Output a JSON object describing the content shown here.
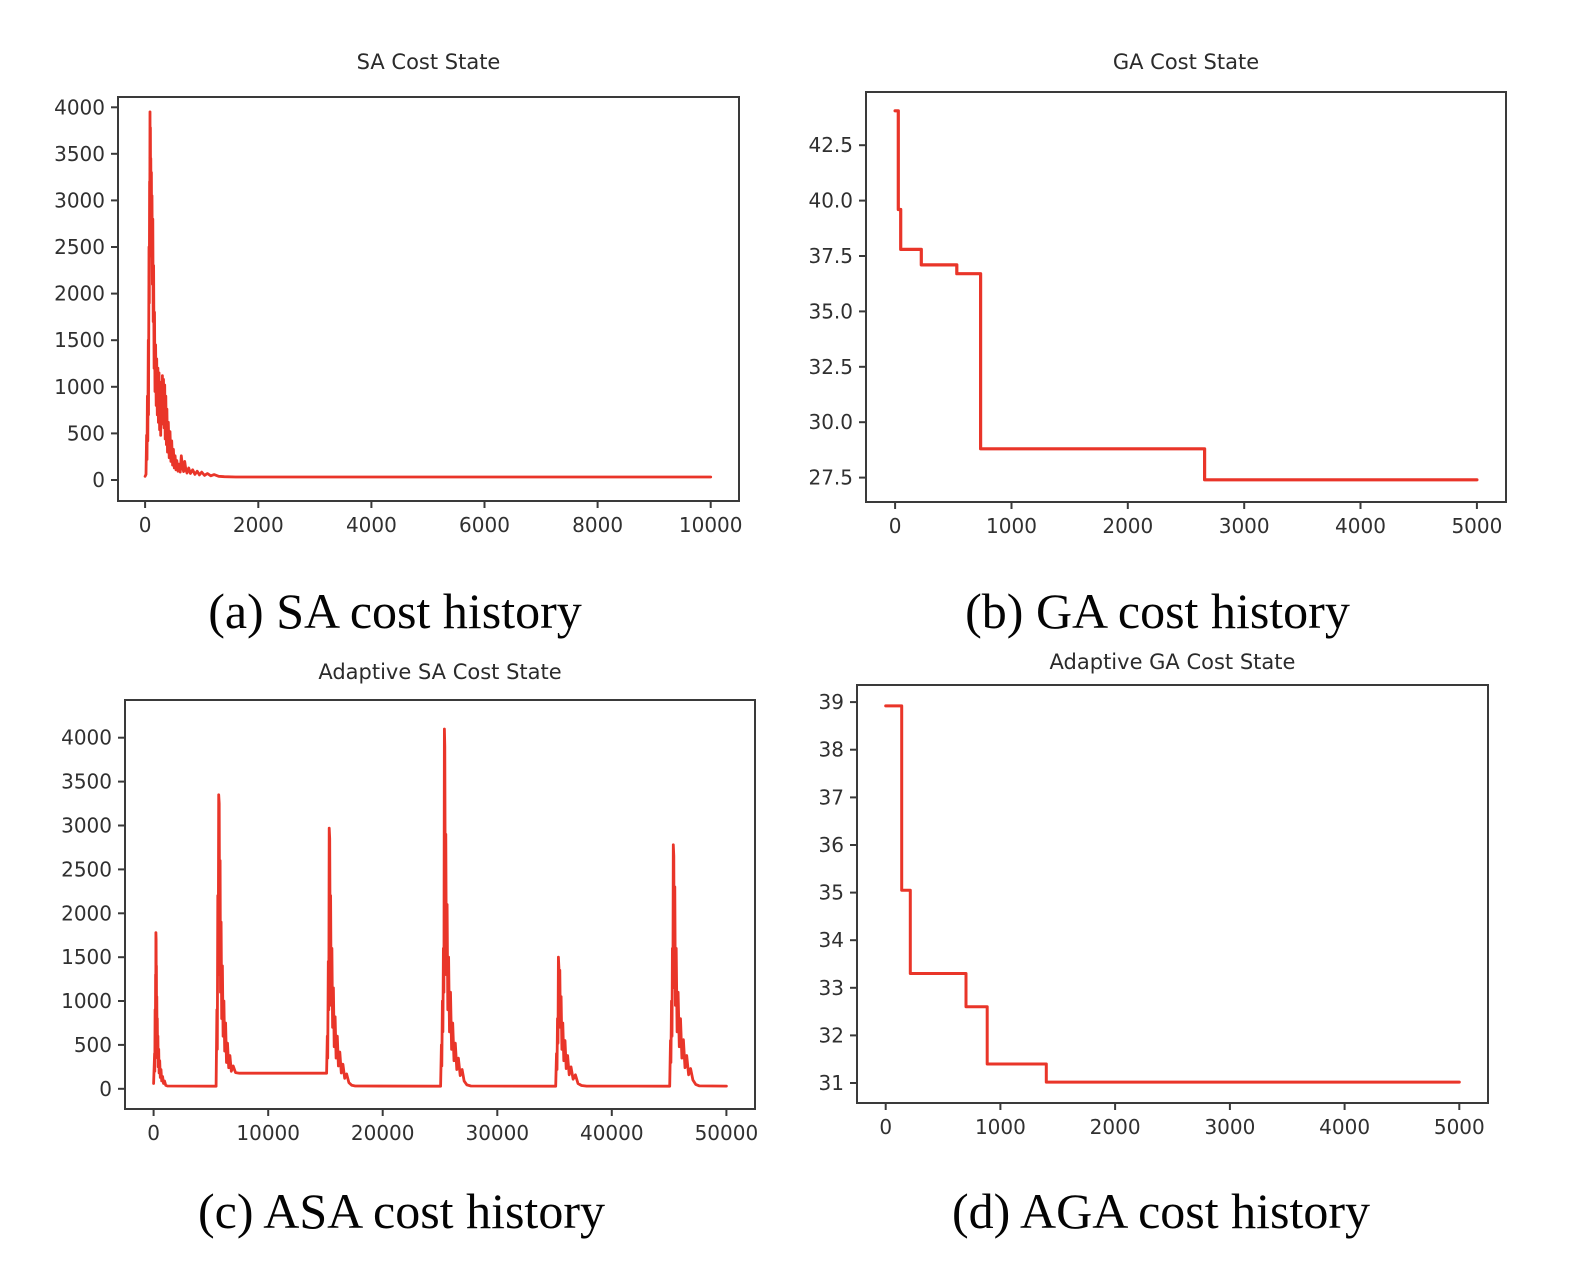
{
  "style": {
    "background": "#ffffff",
    "line_color": "#e93529",
    "axis_color": "#3a3a3a",
    "tick_label_color": "#303030",
    "title_color": "#2b2b2b",
    "caption_color": "#040404"
  },
  "chart_data": [
    {
      "id": "sa",
      "type": "line",
      "title": "SA Cost State",
      "caption": "(a) SA cost history",
      "legend": "none",
      "grid": false,
      "xlim": [
        -480,
        10500
      ],
      "ylim": [
        -225,
        4110
      ],
      "line_width": 2.8,
      "x_ticks": [
        {
          "v": 0,
          "label": "0"
        },
        {
          "v": 2000,
          "label": "2000"
        },
        {
          "v": 4000,
          "label": "4000"
        },
        {
          "v": 6000,
          "label": "6000"
        },
        {
          "v": 8000,
          "label": "8000"
        },
        {
          "v": 10000,
          "label": "10000"
        }
      ],
      "y_ticks": [
        {
          "v": 0,
          "label": "0"
        },
        {
          "v": 500,
          "label": "500"
        },
        {
          "v": 1000,
          "label": "1000"
        },
        {
          "v": 1500,
          "label": "1500"
        },
        {
          "v": 2000,
          "label": "2000"
        },
        {
          "v": 2500,
          "label": "2500"
        },
        {
          "v": 3000,
          "label": "3000"
        },
        {
          "v": 3500,
          "label": "3500"
        },
        {
          "v": 4000,
          "label": "4000"
        }
      ],
      "points": [
        [
          0,
          40
        ],
        [
          15,
          60
        ],
        [
          25,
          480
        ],
        [
          32,
          220
        ],
        [
          40,
          900
        ],
        [
          47,
          420
        ],
        [
          55,
          1500
        ],
        [
          60,
          700
        ],
        [
          68,
          2500
        ],
        [
          73,
          1900
        ],
        [
          78,
          3200
        ],
        [
          82,
          2800
        ],
        [
          85,
          3950
        ],
        [
          88,
          3400
        ],
        [
          92,
          3780
        ],
        [
          96,
          3000
        ],
        [
          100,
          3450
        ],
        [
          105,
          2650
        ],
        [
          110,
          3300
        ],
        [
          116,
          2400
        ],
        [
          122,
          3050
        ],
        [
          128,
          2100
        ],
        [
          135,
          2800
        ],
        [
          142,
          1700
        ],
        [
          150,
          2300
        ],
        [
          158,
          1200
        ],
        [
          166,
          1800
        ],
        [
          175,
          950
        ],
        [
          185,
          1450
        ],
        [
          195,
          800
        ],
        [
          205,
          1300
        ],
        [
          215,
          700
        ],
        [
          225,
          1200
        ],
        [
          235,
          620
        ],
        [
          245,
          1150
        ],
        [
          255,
          540
        ],
        [
          265,
          1050
        ],
        [
          275,
          480
        ],
        [
          285,
          1000
        ],
        [
          295,
          600
        ],
        [
          305,
          1120
        ],
        [
          315,
          720
        ],
        [
          325,
          1080
        ],
        [
          335,
          560
        ],
        [
          345,
          1020
        ],
        [
          355,
          440
        ],
        [
          365,
          900
        ],
        [
          375,
          380
        ],
        [
          385,
          760
        ],
        [
          395,
          300
        ],
        [
          410,
          620
        ],
        [
          425,
          240
        ],
        [
          440,
          520
        ],
        [
          455,
          200
        ],
        [
          470,
          420
        ],
        [
          485,
          160
        ],
        [
          500,
          330
        ],
        [
          515,
          130
        ],
        [
          530,
          260
        ],
        [
          545,
          110
        ],
        [
          560,
          210
        ],
        [
          580,
          95
        ],
        [
          600,
          170
        ],
        [
          620,
          85
        ],
        [
          640,
          260
        ],
        [
          660,
          140
        ],
        [
          680,
          90
        ],
        [
          700,
          200
        ],
        [
          720,
          110
        ],
        [
          740,
          75
        ],
        [
          770,
          130
        ],
        [
          800,
          70
        ],
        [
          840,
          110
        ],
        [
          880,
          60
        ],
        [
          920,
          95
        ],
        [
          960,
          55
        ],
        [
          1000,
          85
        ],
        [
          1050,
          50
        ],
        [
          1100,
          70
        ],
        [
          1160,
          45
        ],
        [
          1220,
          58
        ],
        [
          1300,
          40
        ],
        [
          1400,
          36
        ],
        [
          1600,
          33
        ],
        [
          2000,
          32
        ],
        [
          10000,
          32
        ]
      ]
    },
    {
      "id": "ga",
      "type": "line",
      "title": "GA Cost State",
      "caption": "(b) GA cost history",
      "legend": "none",
      "grid": false,
      "xlim": [
        -250,
        5250
      ],
      "ylim": [
        26.4,
        44.9
      ],
      "line_width": 3.2,
      "x_ticks": [
        {
          "v": 0,
          "label": "0"
        },
        {
          "v": 1000,
          "label": "1000"
        },
        {
          "v": 2000,
          "label": "2000"
        },
        {
          "v": 3000,
          "label": "3000"
        },
        {
          "v": 4000,
          "label": "4000"
        },
        {
          "v": 5000,
          "label": "5000"
        }
      ],
      "y_ticks": [
        {
          "v": 27.5,
          "label": "27.5"
        },
        {
          "v": 30.0,
          "label": "30.0"
        },
        {
          "v": 32.5,
          "label": "32.5"
        },
        {
          "v": 35.0,
          "label": "35.0"
        },
        {
          "v": 37.5,
          "label": "37.5"
        },
        {
          "v": 40.0,
          "label": "40.0"
        },
        {
          "v": 42.5,
          "label": "42.5"
        }
      ],
      "points": [
        [
          0,
          44.05
        ],
        [
          28,
          44.05
        ],
        [
          28,
          39.6
        ],
        [
          48,
          39.6
        ],
        [
          48,
          37.8
        ],
        [
          225,
          37.8
        ],
        [
          225,
          37.1
        ],
        [
          530,
          37.1
        ],
        [
          530,
          36.7
        ],
        [
          735,
          36.7
        ],
        [
          735,
          28.8
        ],
        [
          2660,
          28.8
        ],
        [
          2660,
          27.4
        ],
        [
          5000,
          27.4
        ]
      ]
    },
    {
      "id": "asa",
      "type": "line",
      "title": "Adaptive SA Cost State",
      "caption": "(c) ASA cost history",
      "legend": "none",
      "grid": false,
      "xlim": [
        -2500,
        52500
      ],
      "ylim": [
        -230,
        4430
      ],
      "line_width": 2.8,
      "x_ticks": [
        {
          "v": 0,
          "label": "0"
        },
        {
          "v": 10000,
          "label": "10000"
        },
        {
          "v": 20000,
          "label": "20000"
        },
        {
          "v": 30000,
          "label": "30000"
        },
        {
          "v": 40000,
          "label": "40000"
        },
        {
          "v": 50000,
          "label": "50000"
        }
      ],
      "y_ticks": [
        {
          "v": 0,
          "label": "0"
        },
        {
          "v": 500,
          "label": "500"
        },
        {
          "v": 1000,
          "label": "1000"
        },
        {
          "v": 1500,
          "label": "1500"
        },
        {
          "v": 2000,
          "label": "2000"
        },
        {
          "v": 2500,
          "label": "2500"
        },
        {
          "v": 3000,
          "label": "3000"
        },
        {
          "v": 3500,
          "label": "3500"
        },
        {
          "v": 4000,
          "label": "4000"
        }
      ],
      "points": [
        [
          0,
          60
        ],
        [
          80,
          400
        ],
        [
          100,
          200
        ],
        [
          130,
          900
        ],
        [
          150,
          500
        ],
        [
          170,
          1300
        ],
        [
          185,
          800
        ],
        [
          200,
          1780
        ],
        [
          215,
          1700
        ],
        [
          230,
          950
        ],
        [
          245,
          1400
        ],
        [
          260,
          600
        ],
        [
          280,
          1050
        ],
        [
          300,
          450
        ],
        [
          320,
          800
        ],
        [
          345,
          350
        ],
        [
          370,
          600
        ],
        [
          400,
          250
        ],
        [
          440,
          450
        ],
        [
          480,
          180
        ],
        [
          530,
          320
        ],
        [
          580,
          130
        ],
        [
          640,
          220
        ],
        [
          700,
          90
        ],
        [
          780,
          140
        ],
        [
          860,
          60
        ],
        [
          950,
          90
        ],
        [
          1050,
          40
        ],
        [
          1200,
          32
        ],
        [
          5450,
          30
        ],
        [
          5520,
          900
        ],
        [
          5560,
          450
        ],
        [
          5600,
          2200
        ],
        [
          5640,
          1300
        ],
        [
          5680,
          3350
        ],
        [
          5720,
          3250
        ],
        [
          5760,
          1800
        ],
        [
          5800,
          2600
        ],
        [
          5840,
          1100
        ],
        [
          5890,
          1900
        ],
        [
          5940,
          800
        ],
        [
          6000,
          1400
        ],
        [
          6060,
          600
        ],
        [
          6130,
          1000
        ],
        [
          6200,
          430
        ],
        [
          6280,
          750
        ],
        [
          6360,
          300
        ],
        [
          6450,
          520
        ],
        [
          6550,
          240
        ],
        [
          6660,
          380
        ],
        [
          6780,
          200
        ],
        [
          6950,
          260
        ],
        [
          7150,
          185
        ],
        [
          7500,
          178
        ],
        [
          15100,
          178
        ],
        [
          15160,
          600
        ],
        [
          15200,
          350
        ],
        [
          15250,
          1450
        ],
        [
          15290,
          900
        ],
        [
          15330,
          2970
        ],
        [
          15370,
          2850
        ],
        [
          15410,
          1500
        ],
        [
          15450,
          2200
        ],
        [
          15500,
          950
        ],
        [
          15560,
          1600
        ],
        [
          15620,
          700
        ],
        [
          15690,
          1150
        ],
        [
          15760,
          480
        ],
        [
          15840,
          820
        ],
        [
          15930,
          350
        ],
        [
          16030,
          600
        ],
        [
          16130,
          260
        ],
        [
          16250,
          420
        ],
        [
          16380,
          180
        ],
        [
          16520,
          280
        ],
        [
          16680,
          120
        ],
        [
          16850,
          170
        ],
        [
          17050,
          70
        ],
        [
          17300,
          40
        ],
        [
          17600,
          32
        ],
        [
          25050,
          30
        ],
        [
          25120,
          500
        ],
        [
          25160,
          260
        ],
        [
          25210,
          1000
        ],
        [
          25250,
          650
        ],
        [
          25300,
          1600
        ],
        [
          25340,
          1100
        ],
        [
          25380,
          4100
        ],
        [
          25420,
          3900
        ],
        [
          25460,
          2000
        ],
        [
          25510,
          2900
        ],
        [
          25560,
          1300
        ],
        [
          25620,
          2100
        ],
        [
          25680,
          900
        ],
        [
          25750,
          1500
        ],
        [
          25830,
          650
        ],
        [
          25920,
          1100
        ],
        [
          26010,
          450
        ],
        [
          26110,
          750
        ],
        [
          26220,
          320
        ],
        [
          26340,
          520
        ],
        [
          26470,
          220
        ],
        [
          26610,
          350
        ],
        [
          26760,
          150
        ],
        [
          26930,
          220
        ],
        [
          27100,
          90
        ],
        [
          27350,
          45
        ],
        [
          27700,
          32
        ],
        [
          35100,
          30
        ],
        [
          35170,
          400
        ],
        [
          35210,
          220
        ],
        [
          35260,
          800
        ],
        [
          35300,
          520
        ],
        [
          35340,
          1500
        ],
        [
          35380,
          1380
        ],
        [
          35420,
          800
        ],
        [
          35460,
          1350
        ],
        [
          35510,
          700
        ],
        [
          35570,
          1050
        ],
        [
          35640,
          450
        ],
        [
          35720,
          750
        ],
        [
          35810,
          320
        ],
        [
          35910,
          550
        ],
        [
          36020,
          230
        ],
        [
          36140,
          380
        ],
        [
          36280,
          160
        ],
        [
          36440,
          250
        ],
        [
          36620,
          110
        ],
        [
          36820,
          160
        ],
        [
          37050,
          60
        ],
        [
          37350,
          38
        ],
        [
          37800,
          31
        ],
        [
          45050,
          30
        ],
        [
          45120,
          550
        ],
        [
          45160,
          300
        ],
        [
          45210,
          1000
        ],
        [
          45250,
          600
        ],
        [
          45290,
          1600
        ],
        [
          45330,
          1150
        ],
        [
          45370,
          2780
        ],
        [
          45410,
          2650
        ],
        [
          45450,
          1400
        ],
        [
          45500,
          2300
        ],
        [
          45550,
          950
        ],
        [
          45620,
          1600
        ],
        [
          45700,
          650
        ],
        [
          45790,
          1100
        ],
        [
          45890,
          480
        ],
        [
          46000,
          800
        ],
        [
          46120,
          350
        ],
        [
          46250,
          560
        ],
        [
          46390,
          240
        ],
        [
          46540,
          380
        ],
        [
          46700,
          160
        ],
        [
          46880,
          230
        ],
        [
          47080,
          100
        ],
        [
          47320,
          50
        ],
        [
          47650,
          33
        ],
        [
          50000,
          31
        ]
      ]
    },
    {
      "id": "aga",
      "type": "line",
      "title": "Adaptive GA Cost State",
      "caption": "(d) AGA cost history",
      "legend": "none",
      "grid": false,
      "xlim": [
        -250,
        5250
      ],
      "ylim": [
        30.58,
        39.36
      ],
      "line_width": 3.0,
      "x_ticks": [
        {
          "v": 0,
          "label": "0"
        },
        {
          "v": 1000,
          "label": "1000"
        },
        {
          "v": 2000,
          "label": "2000"
        },
        {
          "v": 3000,
          "label": "3000"
        },
        {
          "v": 4000,
          "label": "4000"
        },
        {
          "v": 5000,
          "label": "5000"
        }
      ],
      "y_ticks": [
        {
          "v": 31,
          "label": "31"
        },
        {
          "v": 32,
          "label": "32"
        },
        {
          "v": 33,
          "label": "33"
        },
        {
          "v": 34,
          "label": "34"
        },
        {
          "v": 35,
          "label": "35"
        },
        {
          "v": 36,
          "label": "36"
        },
        {
          "v": 37,
          "label": "37"
        },
        {
          "v": 38,
          "label": "38"
        },
        {
          "v": 39,
          "label": "39"
        }
      ],
      "points": [
        [
          0,
          38.92
        ],
        [
          140,
          38.92
        ],
        [
          140,
          35.05
        ],
        [
          215,
          35.05
        ],
        [
          215,
          33.3
        ],
        [
          700,
          33.3
        ],
        [
          700,
          32.6
        ],
        [
          885,
          32.6
        ],
        [
          885,
          31.4
        ],
        [
          1400,
          31.4
        ],
        [
          1400,
          31.02
        ],
        [
          5000,
          31.02
        ]
      ]
    }
  ]
}
